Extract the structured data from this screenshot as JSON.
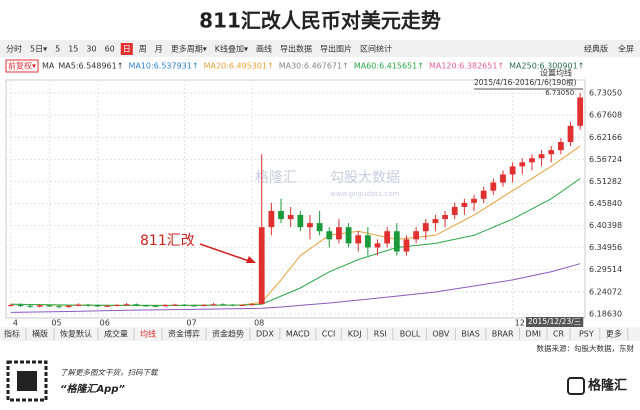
{
  "title": "811汇改人民币对美元走势",
  "toolbar": {
    "left": [
      "分时",
      "5日▾",
      "5",
      "15",
      "30",
      "60",
      "日",
      "周",
      "月",
      "更多周期▾",
      "K线叠加▾",
      "画线",
      "导出数据",
      "导出图片",
      "区间统计"
    ],
    "active": 6,
    "right": [
      "经典版",
      "全屏"
    ]
  },
  "legend": {
    "adjust": "前复权▾",
    "prefix": "MA",
    "items": [
      {
        "label": "MA5:6.548961↑",
        "color": "#333333"
      },
      {
        "label": "MA10:6.537931↑",
        "color": "#2f7fd0"
      },
      {
        "label": "MA20:6.495301↑",
        "color": "#e6a03c"
      },
      {
        "label": "MA30:6.467671↑",
        "color": "#888888"
      },
      {
        "label": "MA60:6.415651↑",
        "color": "#2aa84a"
      },
      {
        "label": "MA120:6.382651↑",
        "color": "#e0609a"
      },
      {
        "label": "MA250:6.300901↑",
        "color": "#2a6a4a"
      }
    ]
  },
  "chart_data": {
    "type": "candlestick",
    "range_label": "2015/4/16-2016/1/6(190根)",
    "ma_setting": "设置均线",
    "max_label": "6.73050",
    "annotation": "811汇改",
    "cursor_date": "2015/12/23/三",
    "watermark": [
      "格隆汇",
      "勾股大数据",
      "www.gogudata.com"
    ],
    "up_color": "#e03030",
    "down_color": "#1a9a3a",
    "candles": [
      [
        6.207,
        6.211,
        6.204,
        6.208
      ],
      [
        6.208,
        6.212,
        6.203,
        6.206
      ],
      [
        6.206,
        6.209,
        6.201,
        6.204
      ],
      [
        6.204,
        6.21,
        6.202,
        6.207
      ],
      [
        6.207,
        6.209,
        6.203,
        6.205
      ],
      [
        6.205,
        6.207,
        6.2,
        6.203
      ],
      [
        6.203,
        6.208,
        6.201,
        6.206
      ],
      [
        6.206,
        6.212,
        6.205,
        6.209
      ],
      [
        6.209,
        6.211,
        6.204,
        6.207
      ],
      [
        6.207,
        6.209,
        6.203,
        6.205
      ],
      [
        6.205,
        6.208,
        6.203,
        6.206
      ],
      [
        6.206,
        6.21,
        6.205,
        6.208
      ],
      [
        6.208,
        6.213,
        6.206,
        6.21
      ],
      [
        6.21,
        6.212,
        6.205,
        6.207
      ],
      [
        6.207,
        6.209,
        6.204,
        6.206
      ],
      [
        6.206,
        6.208,
        6.203,
        6.205
      ],
      [
        6.205,
        6.21,
        6.204,
        6.208
      ],
      [
        6.208,
        6.211,
        6.206,
        6.209
      ],
      [
        6.209,
        6.21,
        6.205,
        6.207
      ],
      [
        6.207,
        6.209,
        6.204,
        6.206
      ],
      [
        6.206,
        6.21,
        6.205,
        6.208
      ],
      [
        6.208,
        6.213,
        6.207,
        6.21
      ],
      [
        6.21,
        6.212,
        6.207,
        6.209
      ],
      [
        6.209,
        6.21,
        6.205,
        6.207
      ],
      [
        6.207,
        6.21,
        6.206,
        6.208
      ],
      [
        6.208,
        6.212,
        6.207,
        6.21
      ],
      [
        6.21,
        6.58,
        6.21,
        6.4
      ],
      [
        6.4,
        6.46,
        6.38,
        6.44
      ],
      [
        6.44,
        6.47,
        6.41,
        6.42
      ],
      [
        6.42,
        6.45,
        6.4,
        6.43
      ],
      [
        6.43,
        6.44,
        6.39,
        6.4
      ],
      [
        6.4,
        6.43,
        6.37,
        6.41
      ],
      [
        6.41,
        6.44,
        6.38,
        6.39
      ],
      [
        6.39,
        6.4,
        6.35,
        6.37
      ],
      [
        6.37,
        6.42,
        6.36,
        6.4
      ],
      [
        6.4,
        6.41,
        6.35,
        6.36
      ],
      [
        6.36,
        6.39,
        6.34,
        6.38
      ],
      [
        6.38,
        6.4,
        6.33,
        6.35
      ],
      [
        6.35,
        6.37,
        6.33,
        6.36
      ],
      [
        6.36,
        6.4,
        6.35,
        6.39
      ],
      [
        6.39,
        6.41,
        6.33,
        6.34
      ],
      [
        6.34,
        6.38,
        6.33,
        6.37
      ],
      [
        6.37,
        6.4,
        6.36,
        6.39
      ],
      [
        6.39,
        6.42,
        6.37,
        6.41
      ],
      [
        6.41,
        6.43,
        6.39,
        6.42
      ],
      [
        6.42,
        6.44,
        6.4,
        6.43
      ],
      [
        6.43,
        6.46,
        6.42,
        6.45
      ],
      [
        6.45,
        6.47,
        6.43,
        6.46
      ],
      [
        6.46,
        6.48,
        6.44,
        6.47
      ],
      [
        6.47,
        6.5,
        6.46,
        6.49
      ],
      [
        6.49,
        6.52,
        6.48,
        6.51
      ],
      [
        6.51,
        6.54,
        6.5,
        6.53
      ],
      [
        6.53,
        6.56,
        6.51,
        6.55
      ],
      [
        6.55,
        6.57,
        6.53,
        6.56
      ],
      [
        6.56,
        6.58,
        6.54,
        6.57
      ],
      [
        6.57,
        6.59,
        6.55,
        6.58
      ],
      [
        6.58,
        6.6,
        6.56,
        6.59
      ],
      [
        6.59,
        6.62,
        6.58,
        6.61
      ],
      [
        6.61,
        6.66,
        6.6,
        6.65
      ],
      [
        6.65,
        6.7305,
        6.64,
        6.72
      ]
    ],
    "ma_lines": [
      {
        "color": "#e6a03c",
        "x": [
          0,
          6,
          12,
          18,
          24,
          26,
          28,
          30,
          33,
          36,
          40,
          44,
          48,
          52,
          56,
          59
        ],
        "values": [
          6.21,
          6.207,
          6.207,
          6.207,
          6.208,
          6.215,
          6.27,
          6.33,
          6.38,
          6.39,
          6.37,
          6.38,
          6.43,
          6.49,
          6.55,
          6.6
        ]
      },
      {
        "color": "#2aa84a",
        "x": [
          0,
          6,
          12,
          18,
          24,
          26,
          28,
          30,
          33,
          36,
          40,
          44,
          48,
          52,
          56,
          59
        ],
        "values": [
          6.21,
          6.208,
          6.207,
          6.207,
          6.208,
          6.21,
          6.23,
          6.25,
          6.29,
          6.32,
          6.35,
          6.36,
          6.38,
          6.42,
          6.47,
          6.52
        ]
      },
      {
        "color": "#8a5ac0",
        "x": [
          0,
          6,
          12,
          18,
          24,
          26,
          28,
          30,
          33,
          36,
          40,
          44,
          48,
          52,
          56,
          59
        ],
        "values": [
          6.19,
          6.192,
          6.195,
          6.197,
          6.199,
          6.2,
          6.203,
          6.207,
          6.213,
          6.22,
          6.23,
          6.24,
          6.255,
          6.27,
          6.29,
          6.31
        ]
      }
    ],
    "xlim": [
      -0.5,
      59.5
    ],
    "ylim": [
      6.176,
      6.763
    ],
    "xticks": [
      {
        "value": 0,
        "label": "4"
      },
      {
        "value": 4,
        "label": "05"
      },
      {
        "value": 9,
        "label": "06"
      },
      {
        "value": 18,
        "label": "07"
      },
      {
        "value": 25,
        "label": "08"
      },
      {
        "value": 52,
        "label": "12"
      }
    ],
    "yticks": [
      {
        "value": 6.7305,
        "label": "6.73050"
      },
      {
        "value": 6.67608,
        "label": "6.67608"
      },
      {
        "value": 6.62166,
        "label": "6.62166"
      },
      {
        "value": 6.56724,
        "label": "6.56724"
      },
      {
        "value": 6.51282,
        "label": "6.51282"
      },
      {
        "value": 6.4584,
        "label": "6.45840"
      },
      {
        "value": 6.40398,
        "label": "6.40398"
      },
      {
        "value": 6.34956,
        "label": "6.34956"
      },
      {
        "value": 6.29514,
        "label": "6.29514"
      },
      {
        "value": 6.24072,
        "label": "6.24072"
      },
      {
        "value": 6.1863,
        "label": "6.18630"
      }
    ],
    "grid": true
  },
  "tabs": {
    "items": [
      "指标",
      "横版",
      "恢复默认",
      "成交量",
      "均线",
      "资金博弈",
      "资金趋势",
      "DDX",
      "MACD",
      "CCI",
      "KDJ",
      "RSI",
      "BOLL",
      "OBV",
      "BIAS",
      "BRAR",
      "DMI",
      "CR",
      "PSY",
      "更多"
    ],
    "active": 4
  },
  "source": "数据来源：勾股大数据，东财",
  "footer": {
    "line1": "了解更多图文干货，扫码下载",
    "line2": "“格隆汇App”",
    "logo": "格隆汇"
  }
}
